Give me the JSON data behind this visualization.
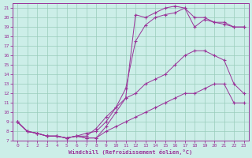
{
  "xlabel": "Windchill (Refroidissement éolien,°C)",
  "bg_color": "#cceee8",
  "line_color": "#993399",
  "grid_color": "#99ccbb",
  "xlim": [
    -0.5,
    23.5
  ],
  "ylim": [
    7,
    21.5
  ],
  "xticks": [
    0,
    1,
    2,
    3,
    4,
    5,
    6,
    7,
    8,
    9,
    10,
    11,
    12,
    13,
    14,
    15,
    16,
    17,
    18,
    19,
    20,
    21,
    22,
    23
  ],
  "yticks": [
    7,
    8,
    9,
    10,
    11,
    12,
    13,
    14,
    15,
    16,
    17,
    18,
    19,
    20,
    21
  ],
  "line1_x": [
    0,
    1,
    2,
    3,
    4,
    5,
    6,
    7,
    8,
    9,
    10,
    11,
    12,
    13,
    14,
    15,
    16,
    17,
    18,
    19,
    20,
    21,
    22,
    23
  ],
  "line1_y": [
    9.0,
    8.0,
    7.8,
    7.5,
    7.5,
    7.3,
    7.5,
    7.3,
    7.3,
    8.5,
    10.0,
    11.5,
    20.3,
    20.0,
    20.5,
    21.0,
    21.2,
    21.0,
    20.0,
    20.0,
    19.5,
    19.5,
    19.0,
    19.0
  ],
  "line2_x": [
    0,
    1,
    2,
    3,
    4,
    5,
    6,
    7,
    8,
    9,
    10,
    11,
    12,
    13,
    14,
    15,
    16,
    17,
    18,
    19,
    20,
    21,
    22,
    23
  ],
  "line2_y": [
    9.0,
    8.0,
    7.8,
    7.5,
    7.5,
    7.3,
    7.5,
    7.8,
    8.0,
    9.0,
    10.5,
    12.5,
    17.5,
    19.2,
    20.0,
    20.3,
    20.5,
    21.0,
    19.0,
    19.8,
    19.5,
    19.3,
    19.0,
    19.0
  ],
  "line3_x": [
    0,
    1,
    2,
    3,
    4,
    5,
    6,
    7,
    8,
    9,
    10,
    11,
    12,
    13,
    14,
    15,
    16,
    17,
    18,
    19,
    20,
    21,
    22,
    23
  ],
  "line3_y": [
    9.0,
    8.0,
    7.8,
    7.5,
    7.5,
    7.3,
    7.5,
    7.5,
    8.3,
    9.5,
    10.5,
    11.5,
    12.0,
    13.0,
    13.5,
    14.0,
    15.0,
    16.0,
    16.5,
    16.5,
    16.0,
    15.5,
    13.0,
    12.0
  ],
  "line4_x": [
    0,
    1,
    2,
    3,
    4,
    5,
    6,
    7,
    8,
    9,
    10,
    11,
    12,
    13,
    14,
    15,
    16,
    17,
    18,
    19,
    20,
    21,
    22,
    23
  ],
  "line4_y": [
    9.0,
    8.0,
    7.8,
    7.5,
    7.5,
    7.3,
    7.5,
    7.3,
    7.3,
    8.0,
    8.5,
    9.0,
    9.5,
    10.0,
    10.5,
    11.0,
    11.5,
    12.0,
    12.0,
    12.5,
    13.0,
    13.0,
    11.0,
    11.0
  ]
}
